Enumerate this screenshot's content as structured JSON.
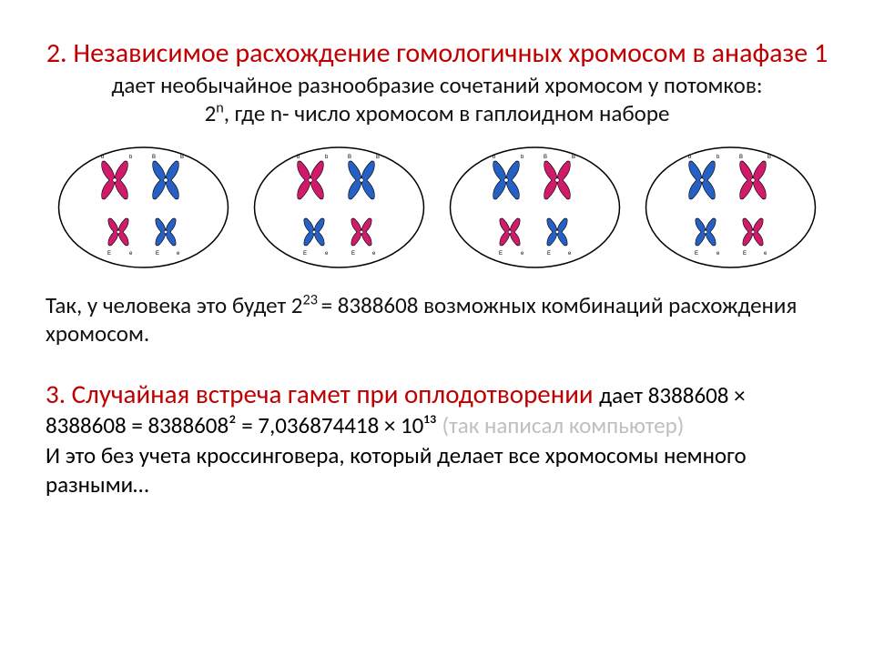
{
  "section2": {
    "title_red": "2. Независимое расхождение гомологичных хромосом в анафазе 1 ",
    "title_black_cont": "дает необычайное разнообразие сочетаний хромосом у потомков:",
    "formula_line_pre": "2",
    "formula_line_sup": "n",
    "formula_line_post": ", где n- число хромосом в гаплоидном наборе"
  },
  "diagram": {
    "cell_stroke": "#000000",
    "cell_fill": "#ffffff",
    "chrom_red": "#d01b6a",
    "chrom_blue": "#2660c4",
    "cells": [
      {
        "top_left": "red",
        "top_right": "blue",
        "bot_left": "red",
        "bot_right": "blue"
      },
      {
        "top_left": "red",
        "top_right": "blue",
        "bot_left": "blue",
        "bot_right": "red"
      },
      {
        "top_left": "blue",
        "top_right": "red",
        "bot_left": "red",
        "bot_right": "blue"
      },
      {
        "top_left": "blue",
        "top_right": "red",
        "bot_left": "blue",
        "bot_right": "red"
      }
    ],
    "allele_top": [
      "b",
      "b",
      "B",
      "B"
    ],
    "allele_bot": [
      "E",
      "e",
      "E",
      "e"
    ]
  },
  "body2": {
    "line1_pre": "Так, у человека это будет 2",
    "line1_sup": "23 ",
    "line1_post": "= 8388608 возможных комбинаций расхождения хромосом."
  },
  "section3": {
    "title_red": "3. Случайная встреча гамет при оплодотворении ",
    "black1": "дает 8388608 × 8388608 = 8388608² = 7,036874418 × 10¹³ ",
    "gray": "(так написал компьютер)",
    "black2": "И это без учета кроссинговера, который делает все хромосомы немного разными…"
  }
}
